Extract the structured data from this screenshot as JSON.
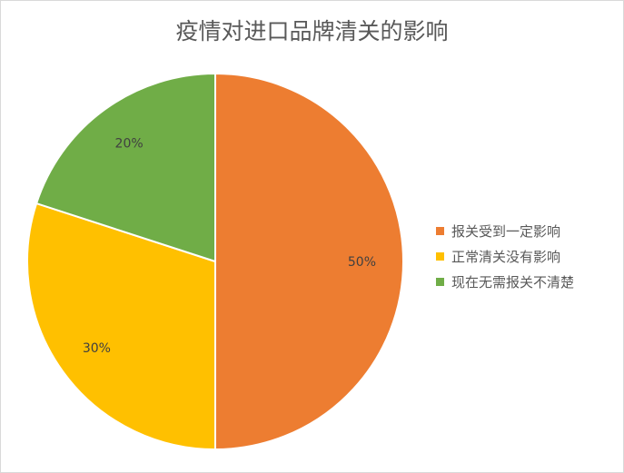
{
  "chart_data": {
    "type": "pie",
    "title": "疫情对进口品牌清关的影响",
    "categories": [
      "报关受到一定影响",
      "正常清关没有影响",
      "现在无需报关不清楚"
    ],
    "values": [
      50,
      30,
      20
    ],
    "labels": [
      "50%",
      "30%",
      "20%"
    ],
    "colors": [
      "#ed7d31",
      "#ffc000",
      "#70ad47"
    ],
    "legend_position": "right",
    "start_angle_deg": 0,
    "direction": "clockwise"
  }
}
